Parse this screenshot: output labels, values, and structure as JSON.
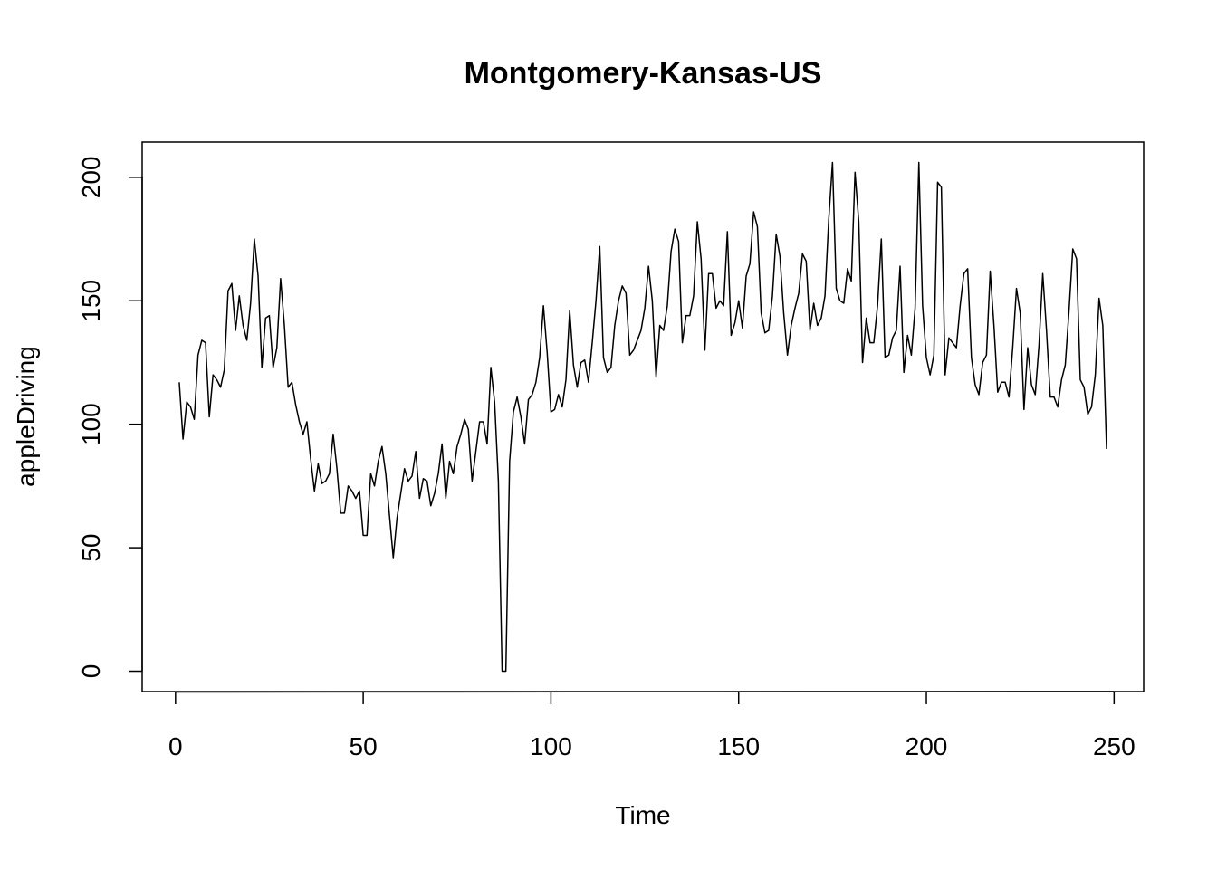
{
  "chart_data": {
    "type": "line",
    "title": "Montgomery-Kansas-US",
    "x_label": "Time",
    "y_label": "appleDriving",
    "x": [
      1,
      2,
      3,
      4,
      5,
      6,
      7,
      8,
      9,
      10,
      11,
      12,
      13,
      14,
      15,
      16,
      17,
      18,
      19,
      20,
      21,
      22,
      23,
      24,
      25,
      26,
      27,
      28,
      29,
      30,
      31,
      32,
      33,
      34,
      35,
      36,
      37,
      38,
      39,
      40,
      41,
      42,
      43,
      44,
      45,
      46,
      47,
      48,
      49,
      50,
      51,
      52,
      53,
      54,
      55,
      56,
      57,
      58,
      59,
      60,
      61,
      62,
      63,
      64,
      65,
      66,
      67,
      68,
      69,
      70,
      71,
      72,
      73,
      74,
      75,
      76,
      77,
      78,
      79,
      80,
      81,
      82,
      83,
      84,
      85,
      86,
      87,
      88,
      89,
      90,
      91,
      92,
      93,
      94,
      95,
      96,
      97,
      98,
      99,
      100,
      101,
      102,
      103,
      104,
      105,
      106,
      107,
      108,
      109,
      110,
      111,
      112,
      113,
      114,
      115,
      116,
      117,
      118,
      119,
      120,
      121,
      122,
      123,
      124,
      125,
      126,
      127,
      128,
      129,
      130,
      131,
      132,
      133,
      134,
      135,
      136,
      137,
      138,
      139,
      140,
      141,
      142,
      143,
      144,
      145,
      146,
      147,
      148,
      149,
      150,
      151,
      152,
      153,
      154,
      155,
      156,
      157,
      158,
      159,
      160,
      161,
      162,
      163,
      164,
      165,
      166,
      167,
      168,
      169,
      170,
      171,
      172,
      173,
      174,
      175,
      176,
      177,
      178,
      179,
      180,
      181,
      182,
      183,
      184,
      185,
      186,
      187,
      188,
      189,
      190,
      191,
      192,
      193,
      194,
      195,
      196,
      197,
      198,
      199,
      200,
      201,
      202,
      203,
      204,
      205,
      206,
      207,
      208,
      209,
      210,
      211,
      212,
      213,
      214,
      215,
      216,
      217,
      218,
      219,
      220,
      221,
      222,
      223,
      224,
      225,
      226,
      227,
      228,
      229,
      230,
      231,
      232,
      233,
      234,
      235,
      236,
      237,
      238,
      239,
      240,
      241,
      242,
      243,
      244,
      245,
      246,
      247,
      248
    ],
    "series": [
      {
        "color": "#000000",
        "values": [
          117,
          94,
          109,
          107,
          102,
          128,
          134,
          133,
          103,
          120,
          118,
          115,
          122,
          154,
          157,
          138,
          152,
          140,
          134,
          149,
          175,
          160,
          123,
          143,
          144,
          123,
          131,
          159,
          140,
          115,
          117,
          108,
          101,
          96,
          101,
          86,
          73,
          84,
          76,
          77,
          80,
          96,
          82,
          64,
          64,
          75,
          73,
          70,
          73,
          55,
          55,
          80,
          75,
          85,
          91,
          80,
          63,
          46,
          62,
          72,
          82,
          77,
          79,
          89,
          70,
          78,
          77,
          67,
          72,
          80,
          92,
          70,
          85,
          80,
          91,
          96,
          102,
          98,
          77,
          89,
          101,
          101,
          92,
          123,
          109,
          77,
          0,
          0,
          85,
          105,
          111,
          103,
          92,
          110,
          112,
          117,
          127,
          148,
          129,
          105,
          106,
          112,
          107,
          118,
          146,
          124,
          115,
          125,
          126,
          117,
          133,
          150,
          172,
          127,
          121,
          123,
          140,
          150,
          156,
          153,
          128,
          130,
          134,
          138,
          147,
          164,
          150,
          119,
          140,
          138,
          148,
          170,
          179,
          174,
          133,
          144,
          144,
          152,
          182,
          167,
          130,
          161,
          161,
          147,
          150,
          148,
          178,
          136,
          141,
          150,
          139,
          160,
          165,
          186,
          180,
          145,
          137,
          138,
          152,
          177,
          168,
          145,
          128,
          140,
          147,
          153,
          169,
          166,
          138,
          149,
          140,
          143,
          152,
          183,
          206,
          155,
          150,
          149,
          163,
          158,
          202,
          182,
          125,
          143,
          133,
          133,
          148,
          175,
          127,
          128,
          135,
          138,
          164,
          121,
          136,
          128,
          147,
          206,
          148,
          127,
          120,
          128,
          198,
          196,
          120,
          135,
          133,
          131,
          148,
          161,
          163,
          127,
          116,
          112,
          125,
          128,
          162,
          140,
          113,
          117,
          117,
          111,
          131,
          155,
          145,
          106,
          131,
          116,
          112,
          132,
          161,
          138,
          111,
          111,
          107,
          118,
          124,
          146,
          171,
          167,
          118,
          115,
          104,
          107,
          120,
          151,
          140,
          90
        ]
      }
    ],
    "xlim": [
      -8.88,
      257.88
    ],
    "ylim": [
      -8.24,
      214.24
    ],
    "xticks": [
      0,
      50,
      100,
      150,
      200,
      250
    ],
    "yticks": [
      0,
      50,
      100,
      150,
      200
    ]
  }
}
